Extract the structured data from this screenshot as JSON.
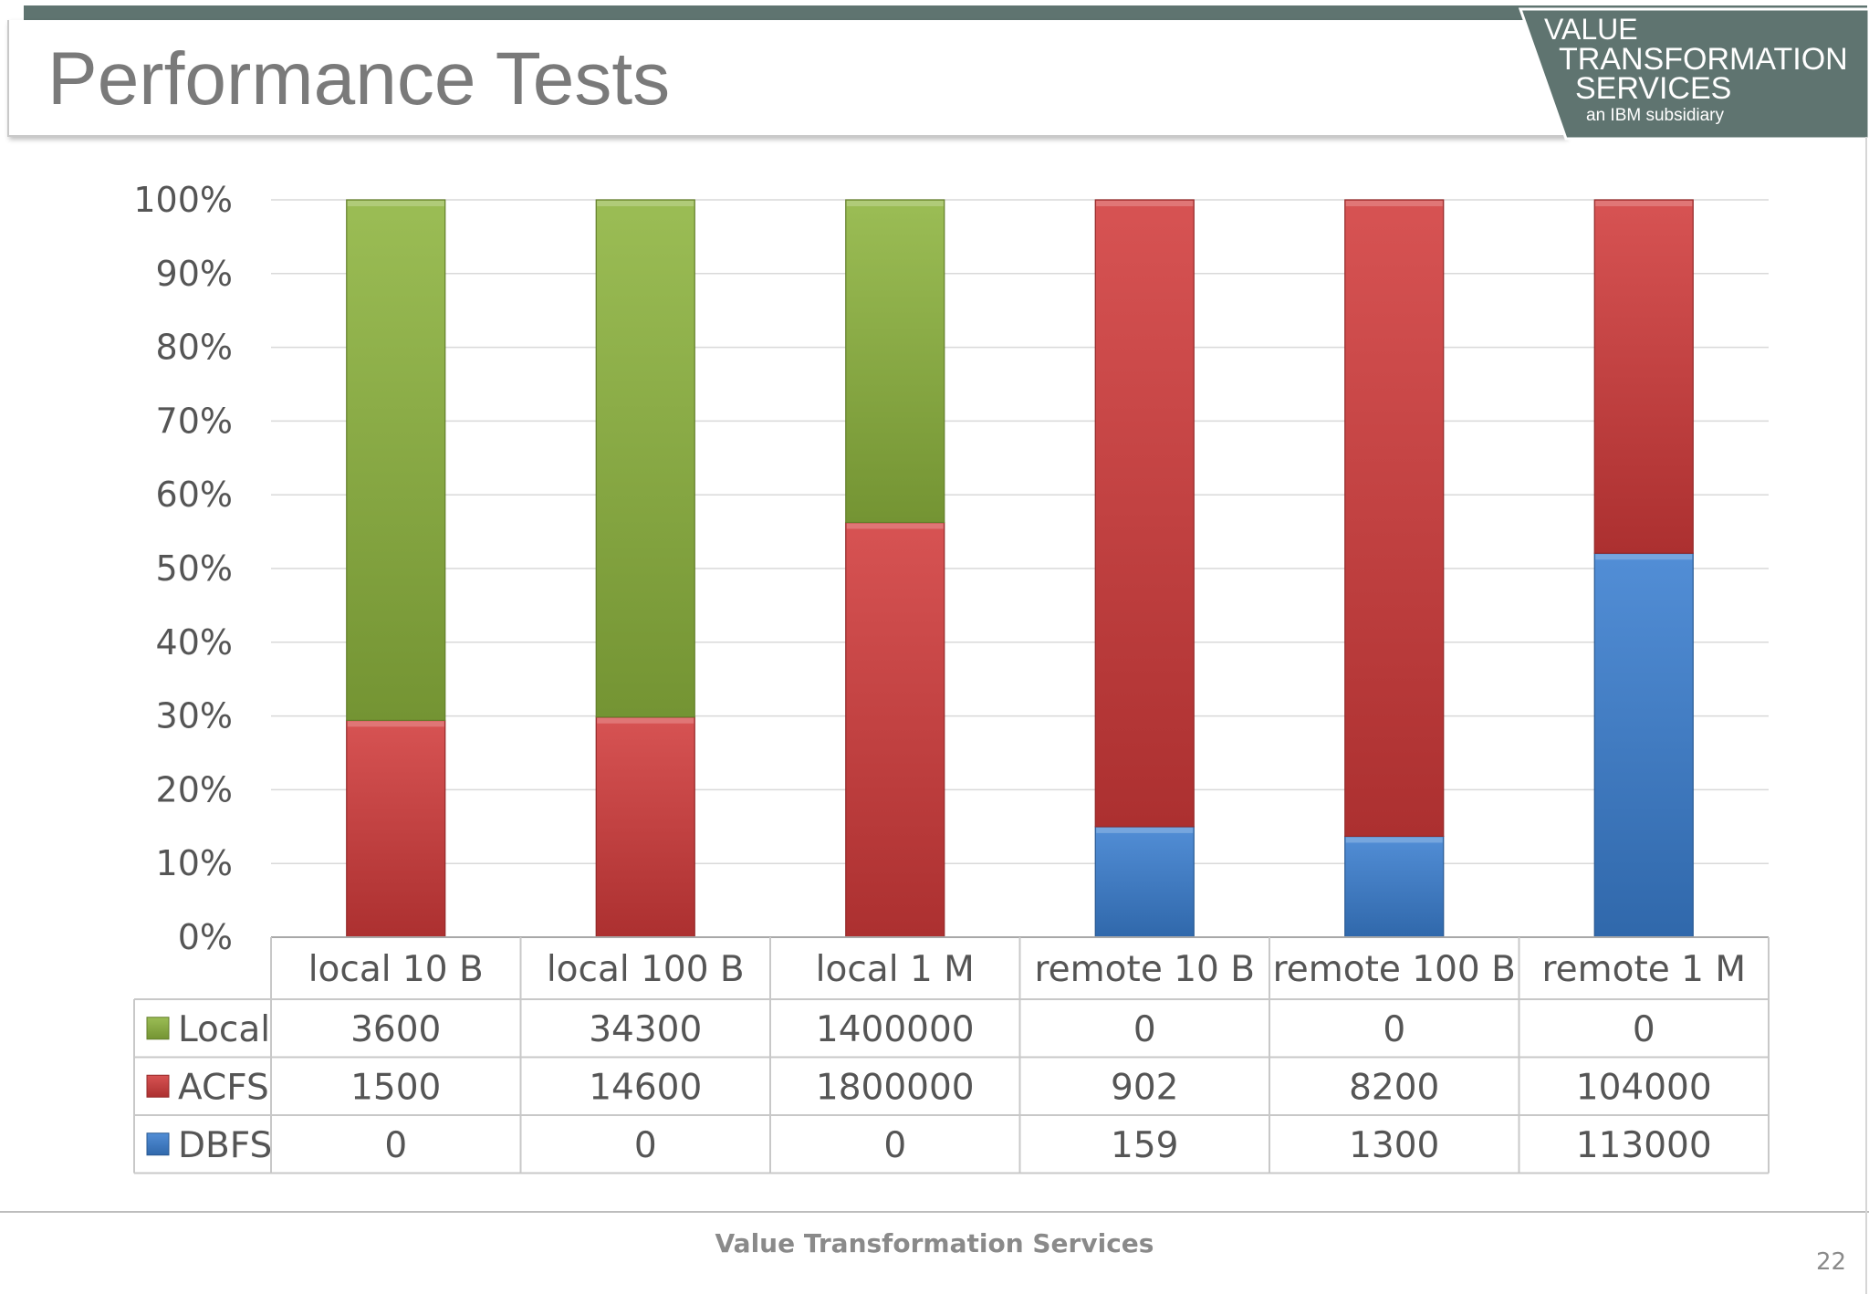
{
  "header": {
    "title": "Performance Tests",
    "logo_lines": [
      "VALUE",
      "TRANSFORMATION",
      "SERVICES",
      "an IBM subsidiary"
    ],
    "logo_color": "#5f7470"
  },
  "footer": {
    "text": "Value Transformation Services",
    "page_number": "22"
  },
  "chart_data": {
    "type": "bar",
    "stacked": "percent",
    "categories": [
      "local 10 B",
      "local 100 B",
      "local 1 M",
      "remote 10 B",
      "remote 100 B",
      "remote 1 M"
    ],
    "series": [
      {
        "name": "Local",
        "color": "#8db43e",
        "values": [
          3600,
          34300,
          1400000,
          0,
          0,
          0
        ],
        "labels": [
          "3600",
          "34300",
          "1400000",
          "0",
          "0",
          "0"
        ]
      },
      {
        "name": "ACFS",
        "color": "#d23b3b",
        "values": [
          1500,
          14600,
          1800000,
          902,
          8200,
          104000
        ],
        "labels": [
          "1500",
          "14600",
          "1800000",
          "902",
          "8200",
          "104000"
        ]
      },
      {
        "name": "DBFS",
        "color": "#3a7fd0",
        "values": [
          0,
          0,
          0,
          159,
          1300,
          113000
        ],
        "labels": [
          "0",
          "0",
          "0",
          "159",
          "1300",
          "113000"
        ]
      }
    ],
    "stack_order_bottom_to_top": [
      "DBFS",
      "ACFS",
      "Local"
    ],
    "y_ticks": [
      "0%",
      "10%",
      "20%",
      "30%",
      "40%",
      "50%",
      "60%",
      "70%",
      "80%",
      "90%",
      "100%"
    ],
    "ylim": [
      0,
      100
    ],
    "grid": true,
    "legend": "data-table"
  }
}
